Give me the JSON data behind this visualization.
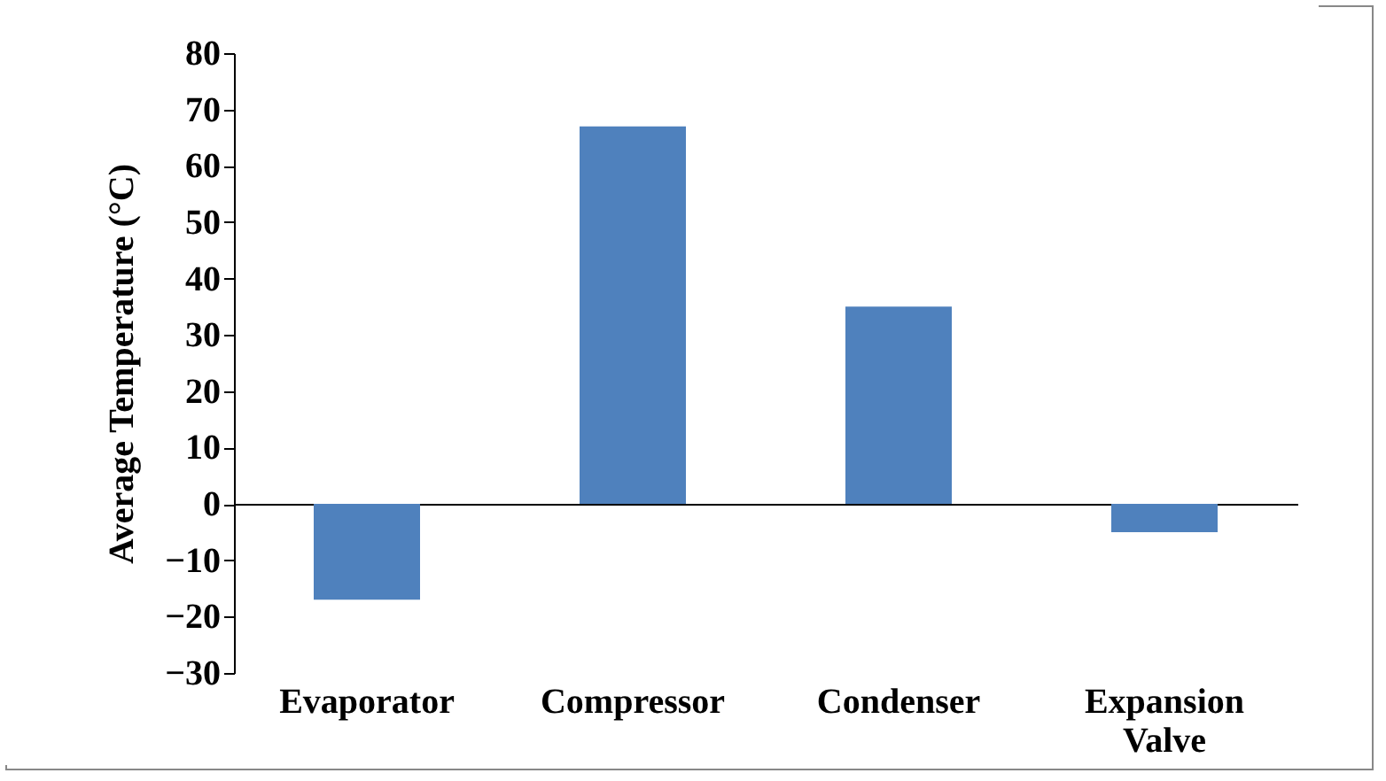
{
  "chart_data": {
    "type": "bar",
    "ylabel": "Average Temperature (°C)",
    "categories": [
      "Evaporator",
      "Compressor",
      "Condenser",
      "Expansion Valve"
    ],
    "values": [
      -17,
      67,
      35,
      -5
    ],
    "color": "#4f81bd",
    "ylim": [
      -30,
      80
    ],
    "yticks": [
      -30,
      -20,
      -10,
      0,
      10,
      20,
      30,
      40,
      50,
      60,
      70,
      80
    ]
  }
}
